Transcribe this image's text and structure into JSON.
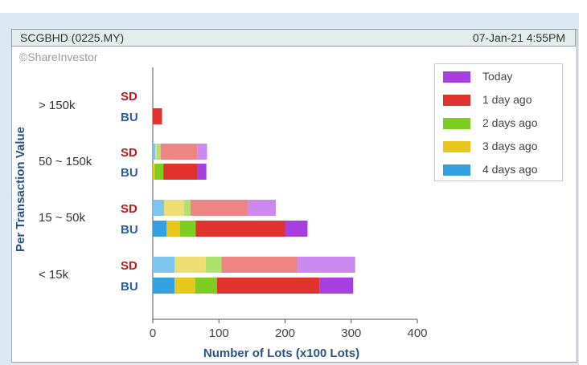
{
  "header": {
    "ticker": "SCGBHD (0225.MY)",
    "timestamp": "07-Jan-21 4:55PM"
  },
  "watermark": "©ShareInvestor",
  "colors": {
    "series": [
      "#33a0e0",
      "#e6c81e",
      "#7ccf22",
      "#e0332e",
      "#a73fe0"
    ],
    "sd_series": [
      "#7dc4ee",
      "#eedd72",
      "#aee26e",
      "#ee8585",
      "#cc8af0"
    ],
    "sd_label": "#c0191b",
    "bu_label": "#2a5ea0"
  },
  "chart_data": {
    "type": "bar",
    "orientation": "horizontal",
    "stacked": true,
    "ylabel": "Per Transaction Value",
    "xlabel": "Number of Lots (x100 Lots)",
    "xlim": [
      0,
      400
    ],
    "xticks": [
      "0",
      "100",
      "200",
      "300",
      "400"
    ],
    "groups": [
      {
        "label": "> 150k",
        "bars": [
          {
            "type": "SD",
            "values": [
              0,
              0,
              0,
              0,
              0
            ]
          },
          {
            "type": "BU",
            "values": [
              0,
              0,
              0,
              14,
              0
            ]
          }
        ]
      },
      {
        "label": "50 ~ 150k",
        "bars": [
          {
            "type": "SD",
            "values": [
              4,
              2,
              6,
              55,
              15
            ]
          },
          {
            "type": "BU",
            "values": [
              0,
              3,
              13,
              52,
              13
            ]
          }
        ]
      },
      {
        "label": "15 ~ 50k",
        "bars": [
          {
            "type": "SD",
            "values": [
              17,
              30,
              10,
              87,
              42
            ]
          },
          {
            "type": "BU",
            "values": [
              21,
              20,
              24,
              135,
              34
            ]
          }
        ]
      },
      {
        "label": "< 15k",
        "bars": [
          {
            "type": "SD",
            "values": [
              33,
              47,
              24,
              115,
              87
            ]
          },
          {
            "type": "BU",
            "values": [
              33,
              31,
              33,
              155,
              51
            ]
          }
        ]
      }
    ],
    "series": [
      {
        "name": "4 days ago"
      },
      {
        "name": "3 days ago"
      },
      {
        "name": "2 days ago"
      },
      {
        "name": "1 day ago"
      },
      {
        "name": "Today"
      }
    ],
    "legend": {
      "position": "top-right",
      "entries": [
        "Today",
        "1 day ago",
        "2 days ago",
        "3 days ago",
        "4 days ago"
      ],
      "color_index": [
        4,
        3,
        2,
        1,
        0
      ]
    }
  }
}
